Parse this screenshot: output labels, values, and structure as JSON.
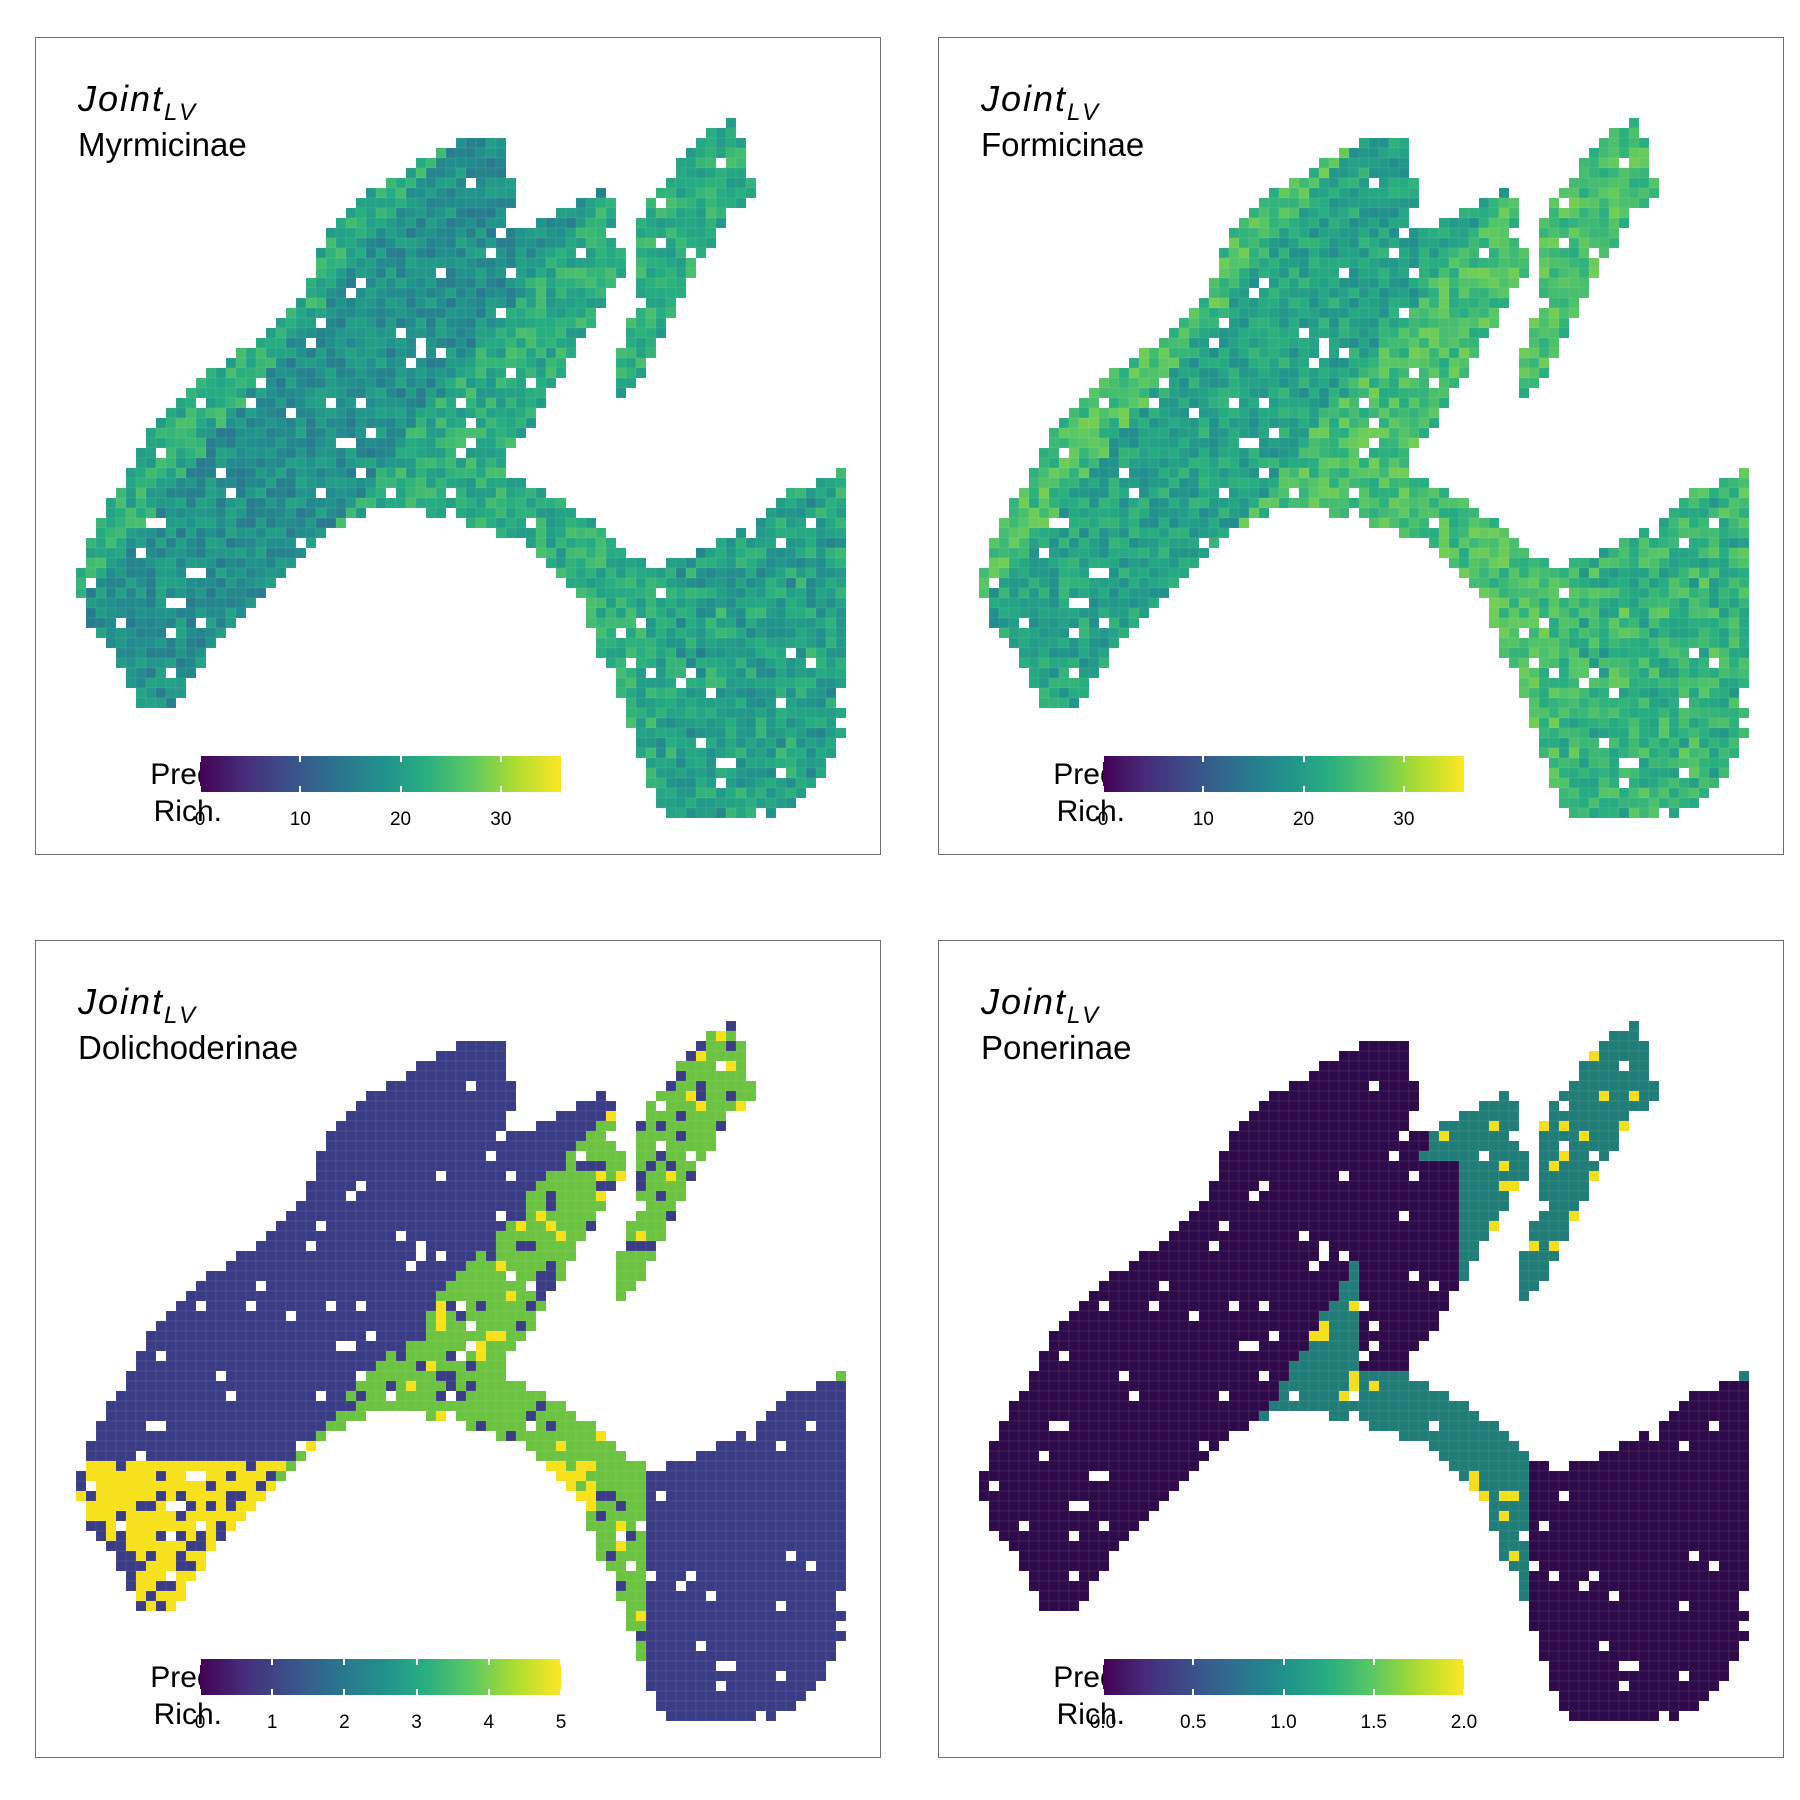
{
  "panels": [
    {
      "model_base": "Joint",
      "model_sub": "LV",
      "subfamily": "Myrmicinae",
      "legend_title_line1": "Pred.",
      "legend_title_line2": "Rich.",
      "ticks": [
        "0",
        "10",
        "20",
        "30"
      ],
      "tick_values": [
        0,
        10,
        20,
        30
      ],
      "range": [
        0,
        36
      ],
      "map_pattern": "continuous",
      "dominant_color": "#4fa84e"
    },
    {
      "model_base": "Joint",
      "model_sub": "LV",
      "subfamily": "Formicinae",
      "legend_title_line1": "Pred.",
      "legend_title_line2": "Rich.",
      "ticks": [
        "0",
        "10",
        "20",
        "30"
      ],
      "tick_values": [
        0,
        10,
        20,
        30
      ],
      "range": [
        0,
        36
      ],
      "map_pattern": "continuous",
      "dominant_color": "#65c050"
    },
    {
      "model_base": "Joint",
      "model_sub": "LV",
      "subfamily": "Dolichoderinae",
      "legend_title_line1": "Pred.",
      "legend_title_line2": "Rich.",
      "ticks": [
        "0",
        "1",
        "2",
        "3",
        "4",
        "5"
      ],
      "tick_values": [
        0,
        1,
        2,
        3,
        4,
        5
      ],
      "range": [
        0,
        5
      ],
      "map_pattern": "categorical",
      "class_colors": [
        "#3b3c86",
        "#6cc241",
        "#f6e11a"
      ]
    },
    {
      "model_base": "Joint",
      "model_sub": "LV",
      "subfamily": "Ponerinae",
      "legend_title_line1": "Pred.",
      "legend_title_line2": "Rich.",
      "ticks": [
        "0.0",
        "0.5",
        "1.0",
        "1.5",
        "2.0"
      ],
      "tick_values": [
        0,
        0.5,
        1,
        1.5,
        2
      ],
      "range": [
        0,
        2
      ],
      "map_pattern": "categorical",
      "class_colors": [
        "#2f0a4a",
        "#217d78",
        "#f5df1a"
      ]
    }
  ]
}
